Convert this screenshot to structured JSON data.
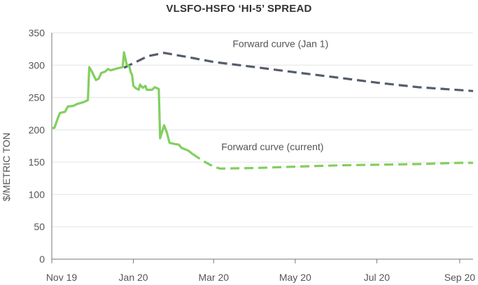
{
  "chart_data": {
    "type": "line",
    "title": "VLSFO-HSFO ‘HI-5’ SPREAD",
    "xlabel": "",
    "ylabel": "$/METRIC TON",
    "ylim": [
      0,
      350
    ],
    "yticks": [
      0,
      50,
      100,
      150,
      200,
      250,
      300,
      350
    ],
    "x_tick_labels": [
      {
        "label": "Nov 19",
        "date": "2019-11-01"
      },
      {
        "label": "Jan 20",
        "date": "2020-01-01"
      },
      {
        "label": "Mar 20",
        "date": "2020-03-01"
      },
      {
        "label": "May 20",
        "date": "2020-05-01"
      },
      {
        "label": "Jul 20",
        "date": "2020-07-01"
      },
      {
        "label": "Sep 20",
        "date": "2020-09-01"
      }
    ],
    "xlim": [
      "2019-11-01",
      "2020-09-11"
    ],
    "grid": "horizontal",
    "legend": "none",
    "colors": {
      "green": "#82cf5f",
      "gray": "#555d6b",
      "grid": "#e3e3e3",
      "axis": "#777777"
    },
    "series": [
      {
        "style": "solid",
        "color": "#82cf5f",
        "points": [
          [
            "2019-11-01",
            203
          ],
          [
            "2019-11-03",
            203
          ],
          [
            "2019-11-05",
            215
          ],
          [
            "2019-11-07",
            226
          ],
          [
            "2019-11-11",
            228
          ],
          [
            "2019-11-13",
            236
          ],
          [
            "2019-11-17",
            237
          ],
          [
            "2019-11-20",
            240
          ],
          [
            "2019-11-25",
            243
          ],
          [
            "2019-11-28",
            246
          ],
          [
            "2019-11-29",
            297
          ],
          [
            "2019-12-01",
            290
          ],
          [
            "2019-12-04",
            277
          ],
          [
            "2019-12-06",
            279
          ],
          [
            "2019-12-08",
            288
          ],
          [
            "2019-12-11",
            290
          ],
          [
            "2019-12-13",
            294
          ],
          [
            "2019-12-15",
            292
          ],
          [
            "2019-12-20",
            295
          ],
          [
            "2019-12-24",
            297
          ],
          [
            "2019-12-25",
            320
          ],
          [
            "2019-12-27",
            301
          ],
          [
            "2019-12-29",
            298
          ],
          [
            "2019-12-30",
            289
          ],
          [
            "2019-12-31",
            285
          ],
          [
            "2020-01-01",
            268
          ],
          [
            "2020-01-03",
            264
          ],
          [
            "2020-01-05",
            262
          ],
          [
            "2020-01-06",
            270
          ],
          [
            "2020-01-08",
            265
          ],
          [
            "2020-01-10",
            268
          ],
          [
            "2020-01-11",
            262
          ],
          [
            "2020-01-15",
            262
          ],
          [
            "2020-01-17",
            266
          ],
          [
            "2020-01-19",
            264
          ],
          [
            "2020-01-20",
            263
          ],
          [
            "2020-01-21",
            187
          ],
          [
            "2020-01-24",
            207
          ],
          [
            "2020-01-26",
            196
          ],
          [
            "2020-01-28",
            180
          ],
          [
            "2020-02-01",
            178
          ],
          [
            "2020-02-04",
            177
          ],
          [
            "2020-02-06",
            172
          ],
          [
            "2020-02-11",
            168
          ],
          [
            "2020-02-14",
            163
          ]
        ]
      },
      {
        "name": "Forward curve (current)",
        "style": "dashed",
        "color": "#82cf5f",
        "points": [
          [
            "2020-02-14",
            163
          ],
          [
            "2020-02-22",
            152
          ],
          [
            "2020-03-01",
            143
          ],
          [
            "2020-03-06",
            140
          ],
          [
            "2020-04-01",
            141
          ],
          [
            "2020-05-01",
            143
          ],
          [
            "2020-06-01",
            145
          ],
          [
            "2020-07-01",
            146
          ],
          [
            "2020-08-01",
            147
          ],
          [
            "2020-09-01",
            149
          ],
          [
            "2020-09-11",
            149
          ]
        ]
      },
      {
        "name": "Forward curve (Jan 1)",
        "style": "dashed",
        "color": "#555d6b",
        "points": [
          [
            "2019-12-25",
            296
          ],
          [
            "2020-01-12",
            314
          ],
          [
            "2020-01-24",
            319
          ],
          [
            "2020-02-12",
            312
          ],
          [
            "2020-03-01",
            305
          ],
          [
            "2020-04-01",
            297
          ],
          [
            "2020-05-01",
            289
          ],
          [
            "2020-06-01",
            281
          ],
          [
            "2020-07-01",
            273
          ],
          [
            "2020-08-01",
            266
          ],
          [
            "2020-09-11",
            260
          ]
        ]
      }
    ],
    "annotations": [
      {
        "text": "Forward curve (Jan 1)",
        "anchor": "2020-04-20",
        "value": 333
      },
      {
        "text": "Forward curve (current)",
        "anchor": "2020-04-14",
        "value": 174
      }
    ]
  }
}
